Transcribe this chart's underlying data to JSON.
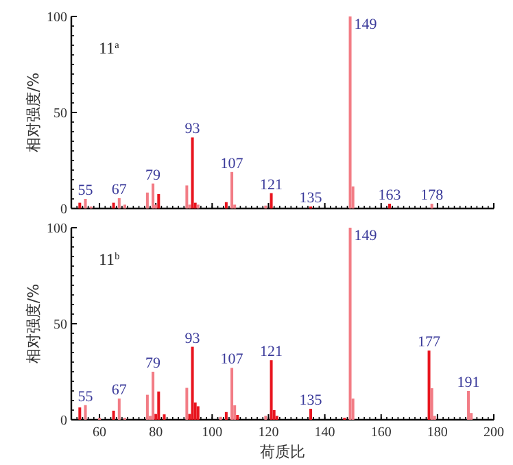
{
  "chart_data": [
    {
      "type": "bar",
      "title": "11$^{a}$",
      "ylabel": "相对强度/%",
      "tick_labels": "y",
      "x": [
        53,
        55,
        57,
        65,
        67,
        69,
        77,
        79,
        80,
        81,
        91,
        92,
        93,
        94,
        95,
        105,
        107,
        108,
        119,
        121,
        135,
        149,
        150,
        163,
        178
      ],
      "values": [
        3,
        5,
        1,
        3,
        5.4,
        2,
        8.3,
        13,
        2,
        7.5,
        12,
        2,
        37,
        3,
        2,
        3.3,
        19,
        2,
        1.5,
        8,
        1,
        100,
        11.5,
        2.5,
        2.5
      ],
      "colors": [
        "#e8141e",
        "#f27c85",
        "#f27c85",
        "#e8141e",
        "#f27c85",
        "#f27c85",
        "#f27c85",
        "#f27c85",
        "#f27c85",
        "#e8141e",
        "#f27c85",
        "#f27c85",
        "#e8141e",
        "#e8141e",
        "#f27c85",
        "#e8141e",
        "#f27c85",
        "#f27c85",
        "#f27c85",
        "#e8141e",
        "#e8141e",
        "#f27c85",
        "#f27c85",
        "#e8141e",
        "#f27c85"
      ],
      "annotations": [
        {
          "text": "55",
          "x": 55,
          "y": 5
        },
        {
          "text": "67",
          "x": 67,
          "y": 5.4
        },
        {
          "text": "79",
          "x": 79,
          "y": 13
        },
        {
          "text": "93",
          "x": 93,
          "y": 37
        },
        {
          "text": "107",
          "x": 107,
          "y": 19
        },
        {
          "text": "121",
          "x": 121,
          "y": 8
        },
        {
          "text": "135",
          "x": 135,
          "y": 1
        },
        {
          "text": "149",
          "x": 149,
          "y": 100
        },
        {
          "text": "163",
          "x": 163,
          "y": 2.5
        },
        {
          "text": "178",
          "x": 178,
          "y": 2.5
        }
      ],
      "xlim": [
        50,
        200
      ],
      "xticks": [
        60,
        80,
        100,
        120,
        140,
        160,
        180,
        200
      ],
      "ylim": [
        0,
        100
      ],
      "yticks": [
        0,
        50,
        100
      ]
    },
    {
      "type": "bar",
      "title": "11$^{b}$",
      "ylabel": "相对强度/%",
      "xlabel": "荷质比",
      "x": [
        53,
        55,
        60,
        65,
        67,
        69,
        77,
        78,
        79,
        80,
        81,
        83,
        91,
        92,
        93,
        94,
        95,
        103,
        105,
        107,
        108,
        109,
        119,
        121,
        122,
        123,
        135,
        147,
        149,
        150,
        177,
        178,
        179,
        191,
        192
      ],
      "values": [
        6.4,
        7.6,
        1,
        4.7,
        11,
        1,
        13,
        2,
        25,
        3,
        14.7,
        2.8,
        16.6,
        3,
        38,
        9,
        7,
        1.5,
        4,
        27,
        7.5,
        2.5,
        2,
        31,
        5,
        2,
        5.7,
        1,
        100,
        11,
        36,
        16.4,
        2,
        15,
        3.5
      ],
      "colors": [
        "#e8141e",
        "#f27c85",
        "#f27c85",
        "#e8141e",
        "#f27c85",
        "#f27c85",
        "#f27c85",
        "#f27c85",
        "#f27c85",
        "#e8141e",
        "#e8141e",
        "#e8141e",
        "#f27c85",
        "#e8141e",
        "#e8141e",
        "#e8141e",
        "#e8141e",
        "#f27c85",
        "#e8141e",
        "#f27c85",
        "#f27c85",
        "#e8141e",
        "#f27c85",
        "#e8141e",
        "#e8141e",
        "#e8141e",
        "#e8141e",
        "#e8141e",
        "#f27c85",
        "#f27c85",
        "#e8141e",
        "#f27c85",
        "#f27c85",
        "#f27c85",
        "#f27c85"
      ],
      "annotations": [
        {
          "text": "55",
          "x": 55,
          "y": 7.6
        },
        {
          "text": "67",
          "x": 67,
          "y": 11
        },
        {
          "text": "79",
          "x": 79,
          "y": 25
        },
        {
          "text": "93",
          "x": 93,
          "y": 38
        },
        {
          "text": "107",
          "x": 107,
          "y": 27
        },
        {
          "text": "121",
          "x": 121,
          "y": 31
        },
        {
          "text": "135",
          "x": 135,
          "y": 5.7
        },
        {
          "text": "149",
          "x": 149,
          "y": 100
        },
        {
          "text": "177",
          "x": 177,
          "y": 36
        },
        {
          "text": "191",
          "x": 191,
          "y": 15
        }
      ],
      "xlim": [
        50,
        200
      ],
      "xticks": [
        60,
        80,
        100,
        120,
        140,
        160,
        180,
        200
      ],
      "ylim": [
        0,
        100
      ],
      "yticks": [
        0,
        50,
        100
      ]
    }
  ]
}
